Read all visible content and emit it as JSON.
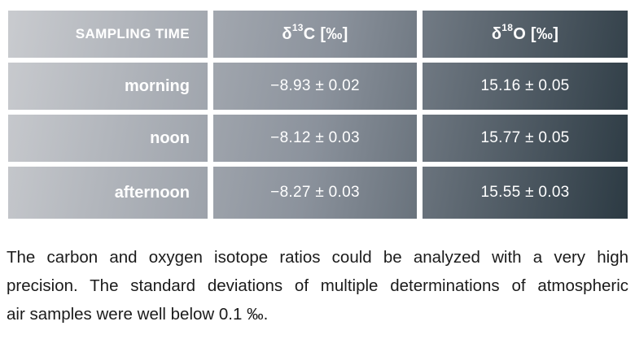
{
  "table": {
    "gradient": {
      "start": "#c9cbcf",
      "mid": "#8b929c",
      "end": "#2c3a43"
    },
    "separator_color": "#ffffff",
    "text_color": "#ffffff",
    "headers": [
      {
        "text": "SAMPLING TIME"
      },
      {
        "pre": "δ",
        "sup": "13",
        "post": "C [‰]"
      },
      {
        "pre": "δ",
        "sup": "18",
        "post": "O [‰]"
      }
    ],
    "rows": [
      {
        "label": "morning",
        "d13c": "−8.93 ± 0.02",
        "d18o": "15.16 ± 0.05"
      },
      {
        "label": "noon",
        "d13c": "−8.12 ± 0.03",
        "d18o": "15.77 ± 0.05"
      },
      {
        "label": "afternoon",
        "d13c": "−8.27 ± 0.03",
        "d18o": "15.55 ± 0.03"
      }
    ]
  },
  "chart_data": {
    "type": "table",
    "columns": [
      "SAMPLING TIME",
      "δ13C [‰]",
      "δ18O [‰]"
    ],
    "rows": [
      [
        "morning",
        "−8.93 ± 0.02",
        "15.16 ± 0.05"
      ],
      [
        "noon",
        "−8.12 ± 0.03",
        "15.77 ± 0.05"
      ],
      [
        "afternoon",
        "−8.27 ± 0.03",
        "15.55 ± 0.03"
      ]
    ]
  },
  "caption": {
    "lines": [
      "The carbon and oxygen isotope ratios could be analyzed with a very high",
      "precision. The standard deviations of multiple determinations of atmospheric",
      "air samples were well below 0.1 ‰."
    ]
  }
}
